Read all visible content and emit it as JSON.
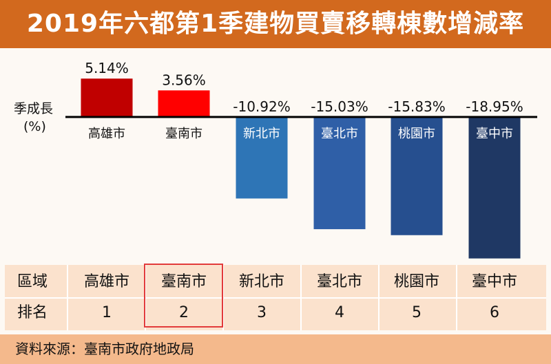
{
  "title": "2019年六都第1季建物買賣移轉棟數增減率",
  "y_axis_label": {
    "line1": "季成長",
    "line2": "(%)"
  },
  "chart_data": {
    "type": "bar",
    "categories": [
      "高雄市",
      "臺南市",
      "新北市",
      "臺北市",
      "桃園市",
      "臺中市"
    ],
    "values": [
      5.14,
      3.56,
      -10.92,
      -15.03,
      -15.83,
      -18.95
    ],
    "value_labels": [
      "5.14%",
      "3.56%",
      "-10.92%",
      "-15.03%",
      "-15.83%",
      "-18.95%"
    ],
    "bar_colors": [
      "#c00000",
      "#ff0000",
      "#2e75b6",
      "#2f5fa7",
      "#264f8f",
      "#1f3864"
    ],
    "ylabel": "季成長 (%)",
    "ylim": [
      -20,
      6
    ]
  },
  "table": {
    "headers": [
      "區域",
      "排名"
    ],
    "regions": [
      "高雄市",
      "臺南市",
      "新北市",
      "臺北市",
      "桃園市",
      "臺中市"
    ],
    "ranks": [
      "1",
      "2",
      "3",
      "4",
      "5",
      "6"
    ],
    "highlighted": "臺南市"
  },
  "source": "資料來源：臺南市政府地政局",
  "colors": {
    "title_bg": "#d2691e",
    "table_bg": "#fbe2cd",
    "source_bg": "#f4b98c",
    "highlight": "#e23a3a"
  }
}
